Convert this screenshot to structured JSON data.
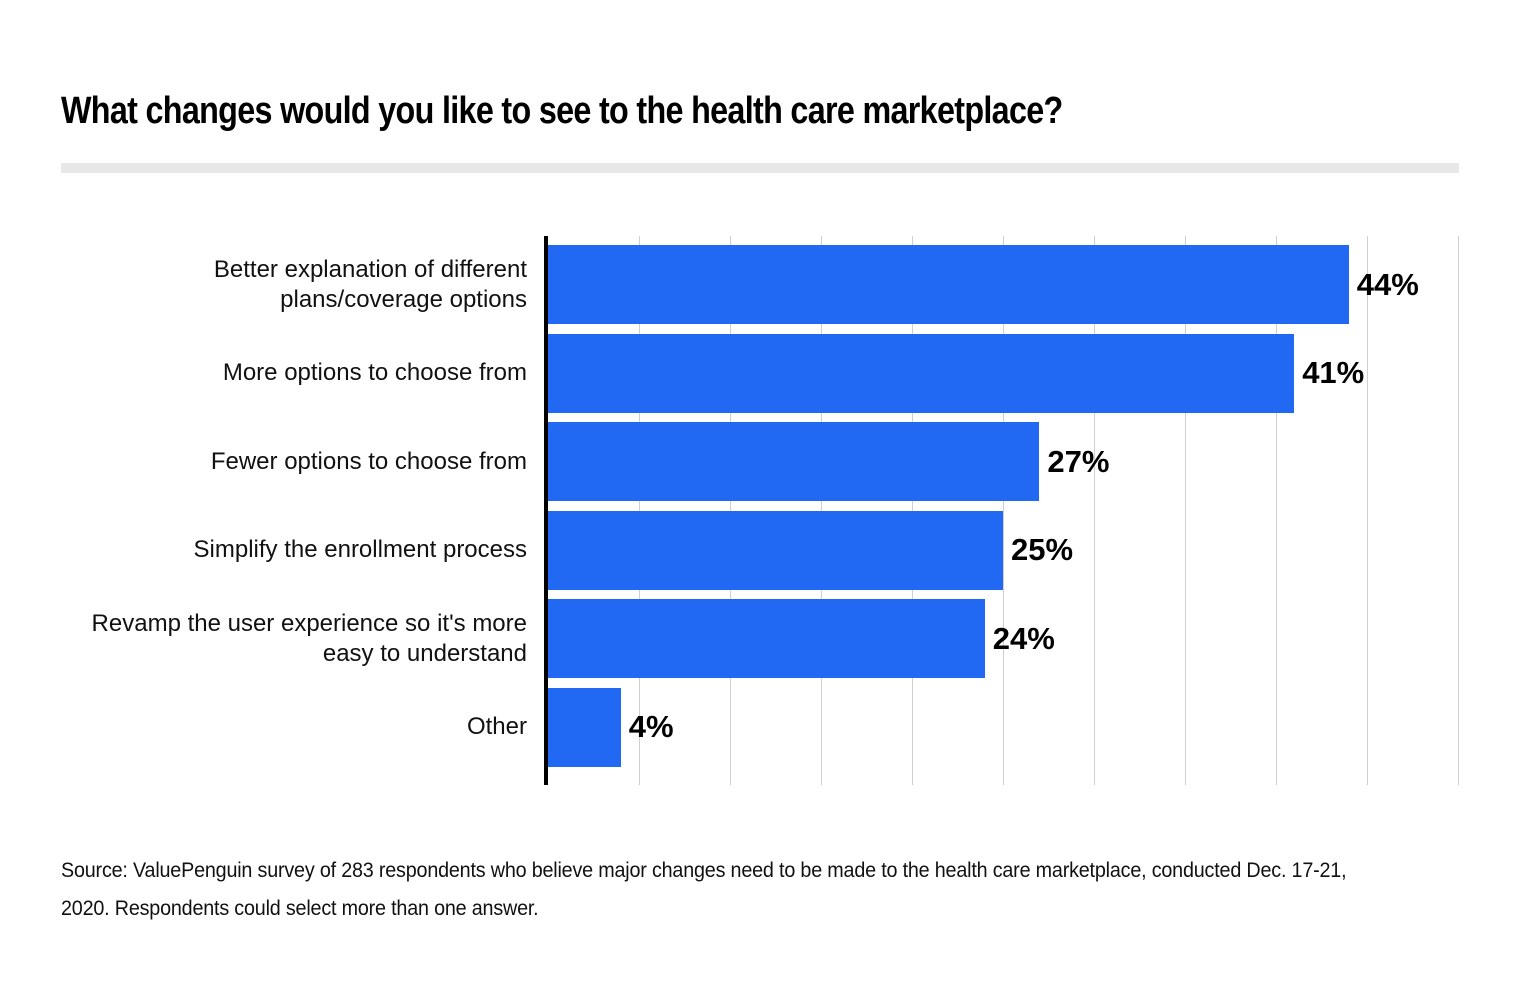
{
  "page": {
    "title": "What changes would you like to see to the health care marketplace?",
    "source_lines": [
      "Source: ValuePenguin survey of 283 respondents who believe major changes need to be made to the health care marketplace, conducted Dec. 17-21,",
      "2020. Respondents could select more than one answer."
    ]
  },
  "chart_data": {
    "type": "bar",
    "orientation": "horizontal",
    "title": "What changes would you like to see to the health care marketplace?",
    "categories": [
      "Better explanation of different plans/coverage options",
      "More options to choose from",
      "Fewer options to choose from",
      "Simplify the enrollment process",
      "Revamp the user experience so it's more easy to understand",
      "Other"
    ],
    "values": [
      44,
      41,
      27,
      25,
      24,
      4
    ],
    "value_labels": [
      "44%",
      "41%",
      "27%",
      "25%",
      "24%",
      "4%"
    ],
    "xlabel": "",
    "ylabel": "",
    "xlim": [
      0,
      50
    ],
    "gridline_interval": 5,
    "grid": true,
    "legend": "none",
    "bar_color": "#2169F2",
    "gridline_color": "#cfcfcf",
    "axis_color": "#000000",
    "label_color": "#111111",
    "value_label_color": "#000000"
  }
}
